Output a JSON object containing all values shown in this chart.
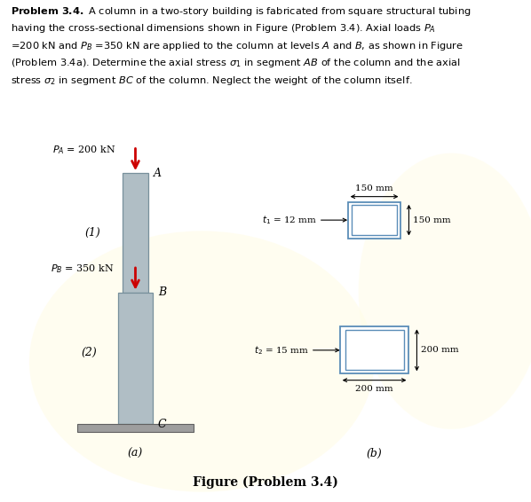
{
  "bg_color": "#ffffff",
  "figure_caption": "Figure (Problem 3.4)",
  "col_color": "#b0bec5",
  "col_edge_color": "#78909c",
  "cross_line_color": "#5b8db8",
  "arrow_color": "#cc0000",
  "base_color": "#9e9e9e",
  "base_edge_color": "#616161",
  "PA_label": "$P_A$ = 200 kN",
  "PB_label": "$P_B$ = 350 kN",
  "label1": "(1)",
  "label2": "(2)",
  "point_A": "A",
  "point_B": "B",
  "point_C": "C",
  "t1_label": "$t_1$ = 12 mm",
  "t2_label": "$t_2$ = 15 mm",
  "w150": "150 mm",
  "h150": "150 mm",
  "w200": "200 mm",
  "h200": "200 mm",
  "sub_a": "(a)",
  "sub_b": "(b)",
  "text_color": "#000000"
}
